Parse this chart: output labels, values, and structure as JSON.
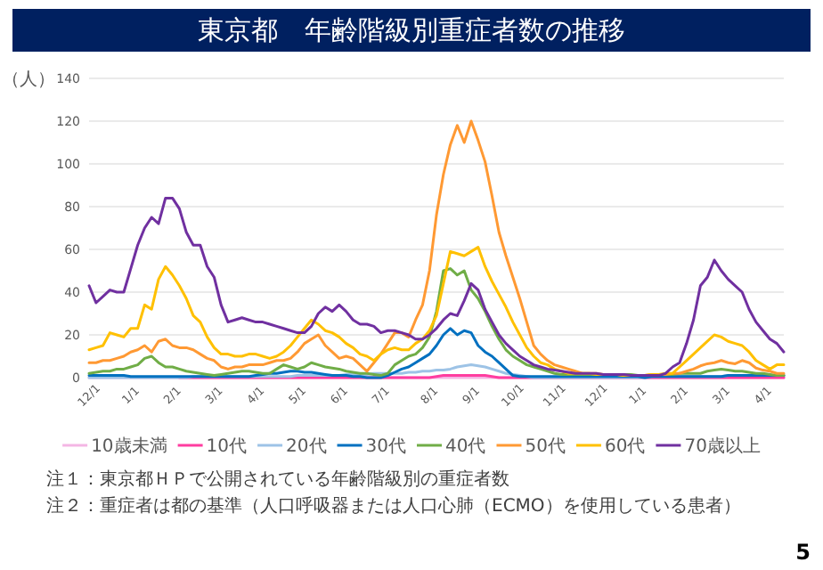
{
  "chart_data": {
    "type": "line",
    "title": "東京都　年齢階級別重症者数の推移",
    "ylabel": "（人）",
    "categories": [
      "12/1",
      null,
      null,
      null,
      null,
      null,
      "1/1",
      null,
      null,
      null,
      null,
      null,
      "2/1",
      null,
      null,
      null,
      null,
      null,
      "3/1",
      null,
      null,
      null,
      null,
      null,
      "4/1",
      null,
      null,
      null,
      null,
      null,
      "5/1",
      null,
      null,
      null,
      null,
      null,
      "6/1",
      null,
      null,
      null,
      null,
      null,
      "7/1",
      null,
      null,
      null,
      null,
      null,
      null,
      "8/1",
      null,
      null,
      null,
      null,
      null,
      "9/1",
      null,
      null,
      null,
      null,
      null,
      "10/1",
      null,
      null,
      null,
      null,
      null,
      "11/1",
      null,
      null,
      null,
      null,
      null,
      "12/1",
      null,
      null,
      null,
      null,
      null,
      "1/1",
      null,
      null,
      null,
      null,
      null,
      "2/1",
      null,
      null,
      null,
      null,
      null,
      "3/1",
      null,
      null,
      null,
      null,
      null,
      "4/1",
      null,
      null,
      null
    ],
    "ylim": [
      0,
      140
    ],
    "yticks": [
      0,
      20,
      40,
      60,
      80,
      100,
      120,
      140
    ],
    "grid": "y",
    "legend": "bottom",
    "series": [
      {
        "name": "10歳未満",
        "color": "#f4b6e4",
        "values": [
          0,
          0,
          0,
          0,
          0,
          0,
          0,
          0,
          0,
          0,
          0,
          0,
          0,
          0,
          0,
          0,
          0,
          0,
          0,
          0,
          0,
          0,
          0,
          0,
          0,
          0,
          0,
          0,
          0,
          0,
          0,
          0,
          0,
          0,
          0,
          0,
          0,
          0,
          0,
          0,
          0,
          0,
          0,
          0,
          0,
          0,
          0,
          0,
          0,
          0,
          0,
          0,
          0,
          0,
          0,
          0,
          0,
          0,
          0,
          0,
          0,
          0,
          0,
          0,
          0,
          0,
          0,
          0,
          0,
          0,
          0,
          0,
          0,
          0,
          0,
          0,
          0,
          0,
          0,
          0,
          0,
          0,
          0,
          0,
          0,
          0,
          0,
          0,
          0,
          0,
          0,
          0,
          0,
          0,
          0,
          0,
          0,
          0,
          0,
          0,
          0
        ]
      },
      {
        "name": "10代",
        "color": "#ff3da0",
        "values": [
          null,
          null,
          null,
          null,
          null,
          null,
          null,
          null,
          null,
          null,
          null,
          null,
          null,
          0,
          0,
          0,
          0,
          0,
          0,
          0,
          0,
          0,
          0,
          0,
          0,
          0,
          0,
          0,
          0,
          0,
          0,
          0,
          0,
          0,
          0,
          0,
          0,
          0,
          0,
          0,
          0,
          0,
          0,
          0,
          0,
          0,
          0,
          0,
          0,
          0,
          0.5,
          1,
          1,
          1,
          1,
          1,
          1,
          1,
          0.5,
          0,
          0,
          0,
          0,
          0,
          0,
          0,
          0,
          0,
          0,
          0,
          0,
          0,
          0,
          0,
          0,
          0,
          0,
          0,
          0,
          0,
          0,
          0,
          0,
          0,
          0,
          0,
          0,
          0,
          0,
          0,
          0,
          0,
          0,
          0,
          0,
          0,
          0,
          0,
          0,
          0,
          0
        ]
      },
      {
        "name": "20代",
        "color": "#9dc3e6",
        "values": [
          0,
          0,
          0,
          0,
          0,
          0,
          0,
          0,
          0,
          0,
          0,
          0,
          0,
          0,
          0,
          0.5,
          0.5,
          0.5,
          0.5,
          0.5,
          0.5,
          0.5,
          0.5,
          0.5,
          0.5,
          0.5,
          0.5,
          0.5,
          0.5,
          0.5,
          1,
          1,
          1,
          1,
          1,
          1,
          1,
          1.5,
          1.5,
          1.5,
          1.5,
          2,
          2,
          2,
          2,
          2,
          2.5,
          2.5,
          3,
          3,
          3.5,
          3.5,
          4,
          5,
          5.5,
          6,
          5.5,
          5,
          4,
          3,
          2,
          1.5,
          1,
          0.5,
          0,
          0,
          0,
          0,
          0,
          0,
          0,
          0,
          0,
          0,
          0,
          0,
          0,
          0,
          0,
          0,
          0,
          0.5,
          0.5,
          0.5,
          0.5,
          0.5,
          0.5,
          0.5,
          0.5,
          0.5,
          0.5,
          0.5,
          1,
          1,
          1,
          1,
          1,
          1,
          1,
          1,
          1
        ]
      },
      {
        "name": "30代",
        "color": "#0070c0",
        "values": [
          1,
          1,
          1,
          1,
          1,
          1,
          0.5,
          0.5,
          0.5,
          0.5,
          0.5,
          0.5,
          0.5,
          0.5,
          0.5,
          0.5,
          0.5,
          0.5,
          0.5,
          0.5,
          0.5,
          0.5,
          0.5,
          0.5,
          1,
          1.5,
          2,
          2,
          2.5,
          3,
          3,
          2.5,
          2.5,
          2,
          1.5,
          1,
          1,
          1,
          0.5,
          0.5,
          0,
          0,
          0,
          1,
          2.5,
          4,
          5,
          7,
          9,
          11,
          15,
          20,
          23,
          20,
          22,
          21,
          15,
          12,
          10,
          7,
          4,
          1,
          0.5,
          0.5,
          0.5,
          0.5,
          0.5,
          0.5,
          0.5,
          0.5,
          0.5,
          0.5,
          0.5,
          0.5,
          0.5,
          0.5,
          0.5,
          0.5,
          0.5,
          0.5,
          0,
          0.5,
          0.5,
          0.5,
          0.5,
          0.5,
          0.5,
          0.5,
          0.5,
          0.5,
          0.5,
          0.5,
          1,
          1,
          1,
          1,
          1,
          1,
          1,
          1,
          1
        ]
      },
      {
        "name": "40代",
        "color": "#70ad47",
        "values": [
          2,
          2.5,
          3,
          3,
          4,
          4,
          5,
          6,
          9,
          10,
          7,
          5,
          5,
          4,
          3,
          2.5,
          2,
          1.5,
          1,
          1.5,
          2,
          2.5,
          3,
          3,
          2.5,
          2,
          2,
          4,
          6,
          5,
          4,
          5,
          7,
          6,
          5,
          4.5,
          4,
          3,
          2.5,
          2,
          2,
          1.5,
          1,
          2,
          6,
          8,
          10,
          11,
          14,
          19,
          31,
          50,
          51,
          48,
          50,
          41,
          37,
          31,
          24,
          18,
          13,
          10,
          8,
          6,
          5,
          4,
          3,
          2,
          1.5,
          1.5,
          1.5,
          1.5,
          1.5,
          1.5,
          1.5,
          1.5,
          1.5,
          1.5,
          1.5,
          1,
          1,
          1,
          1.5,
          1.5,
          1.5,
          2,
          2,
          2,
          2,
          3,
          3.5,
          4,
          3.5,
          3,
          3,
          2.5,
          2,
          2,
          1.5,
          1,
          1
        ]
      },
      {
        "name": "50代",
        "color": "#ff9933",
        "values": [
          7,
          7,
          8,
          8,
          9,
          10,
          12,
          13,
          15,
          12,
          17,
          18,
          15,
          14,
          14,
          13,
          11,
          9,
          8,
          5,
          4,
          5,
          5,
          6,
          6,
          6,
          7,
          8,
          8,
          9,
          12,
          16,
          18,
          20,
          15,
          12,
          9,
          10,
          9,
          6,
          3,
          7,
          11,
          16,
          21,
          21,
          19,
          27,
          34,
          50,
          76,
          95,
          109,
          118,
          110,
          120,
          111,
          101,
          85,
          68,
          57,
          47,
          37,
          26,
          15,
          11,
          8,
          6,
          5,
          4,
          3,
          2,
          2,
          2,
          1.5,
          1.5,
          1.5,
          1,
          1,
          1,
          1,
          1.5,
          1.5,
          1.5,
          2,
          2,
          3,
          4,
          5.5,
          6.5,
          7,
          8,
          7,
          6.5,
          8,
          7,
          4.5,
          3.5,
          3,
          2,
          2
        ]
      },
      {
        "name": "60代",
        "color": "#ffc000",
        "values": [
          13,
          14,
          15,
          21,
          20,
          19,
          23,
          23,
          34,
          32,
          46,
          52,
          48,
          43,
          37,
          29,
          26,
          19,
          14,
          11,
          11,
          10,
          10,
          11,
          11,
          10,
          9,
          10,
          12,
          15,
          19,
          23,
          27,
          25,
          22,
          21,
          19,
          16,
          14,
          11,
          10,
          8,
          11,
          13,
          14,
          13,
          13,
          16,
          18,
          22,
          29,
          44,
          59,
          58,
          57,
          59,
          61,
          52,
          45,
          39,
          33,
          26,
          20,
          14,
          10,
          7,
          6,
          4,
          3,
          2,
          2,
          2,
          2,
          1.5,
          1.5,
          1.5,
          1.5,
          1,
          1,
          1,
          1,
          1.5,
          1.5,
          2,
          2,
          5,
          8,
          11,
          14,
          17,
          20,
          19,
          17,
          16,
          15,
          12,
          8,
          6,
          4,
          6,
          6
        ]
      },
      {
        "name": "70歳以上",
        "color": "#7030a0",
        "values": [
          43,
          35,
          38,
          41,
          40,
          40,
          51,
          62,
          70,
          75,
          72,
          84,
          84,
          79,
          68,
          62,
          62,
          52,
          47,
          34,
          26,
          27,
          28,
          27,
          26,
          26,
          25,
          24,
          23,
          22,
          21,
          21,
          24,
          30,
          33,
          31,
          34,
          31,
          27,
          25,
          25,
          24,
          21,
          22,
          22,
          21,
          20,
          18,
          18,
          20,
          23,
          27,
          30,
          29,
          36,
          44,
          41,
          32,
          26,
          20,
          16,
          13,
          10,
          8,
          6,
          5,
          4,
          3.5,
          3,
          2.5,
          2,
          2,
          2,
          2,
          1.5,
          1.5,
          1.5,
          1.5,
          1,
          1,
          1,
          1,
          1,
          2,
          5,
          7,
          16,
          27,
          43,
          47,
          55,
          50,
          46,
          43,
          40,
          32,
          26,
          22,
          18,
          16,
          12
        ]
      }
    ],
    "annotations": [
      "注１：東京都ＨＰで公開されている年齢階級別の重症者数",
      "注２：重症者は都の基準（人口呼吸器または人口心肺（ECMO）を使用している患者）",
      "5"
    ]
  }
}
